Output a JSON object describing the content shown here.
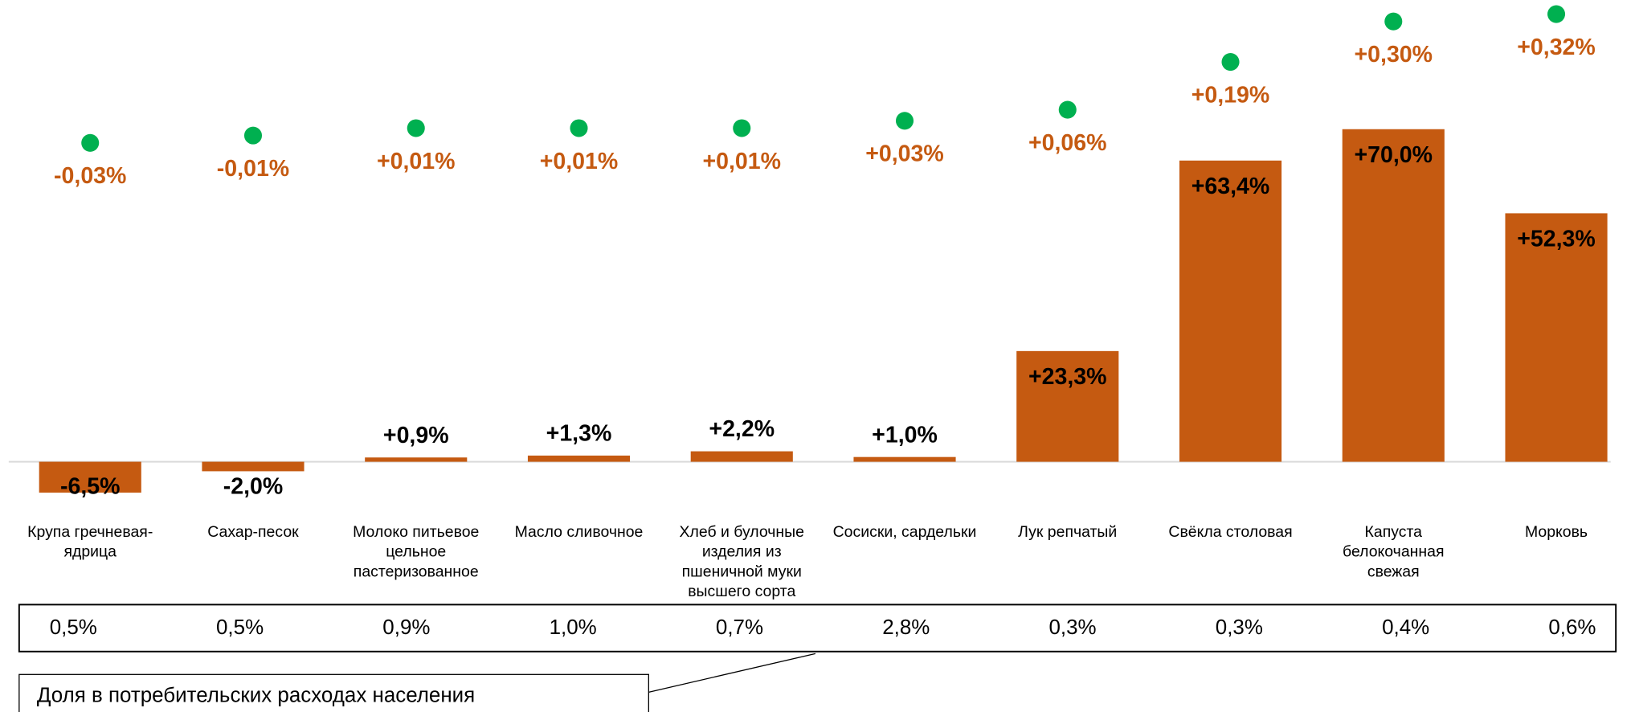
{
  "chart_data": {
    "type": "bar",
    "categories": [
      "Крупа гречневая-ядрица",
      "Сахар-песок",
      "Молоко питьевое цельное пастеризованное",
      "Масло сливочное",
      "Хлеб и булочные изделия из пшеничной муки высшего сорта",
      "Сосиски, сардельки",
      "Лук репчатый",
      "Свёкла столовая",
      "Капуста белокочанная свежая",
      "Морковь"
    ],
    "series": [
      {
        "color": "#c55a11",
        "label_color": "#000000",
        "values": [
          -6.5,
          -2.0,
          0.9,
          1.3,
          2.2,
          1.0,
          23.3,
          63.4,
          70.0,
          52.3
        ],
        "value_labels": [
          "-6,5%",
          "-2,0%",
          "+0,9%",
          "+1,3%",
          "+2,2%",
          "+1,0%",
          "+23,3%",
          "+63,4%",
          "+70,0%",
          "+52,3%"
        ]
      },
      {
        "color": "#00b050",
        "label_color": "#c55a11",
        "axis": "y2",
        "marker": "dot",
        "values": [
          -0.03,
          -0.01,
          0.01,
          0.01,
          0.01,
          0.03,
          0.06,
          0.19,
          0.3,
          0.32
        ],
        "value_labels": [
          "-0,03%",
          "-0,01%",
          "+0,01%",
          "+0,01%",
          "+0,01%",
          "+0,03%",
          "+0,06%",
          "+0,19%",
          "+0,30%",
          "+0,32%"
        ]
      }
    ],
    "ylim": [
      -8,
      95
    ],
    "y2lim": [
      -1,
      0.33
    ],
    "share_labels": [
      "0,5%",
      "0,5%",
      "0,9%",
      "1,0%",
      "0,7%",
      "2,8%",
      "0,3%",
      "0,3%",
      "0,4%",
      "0,6%"
    ],
    "annotation": "Доля в потребительских расходах населения"
  }
}
